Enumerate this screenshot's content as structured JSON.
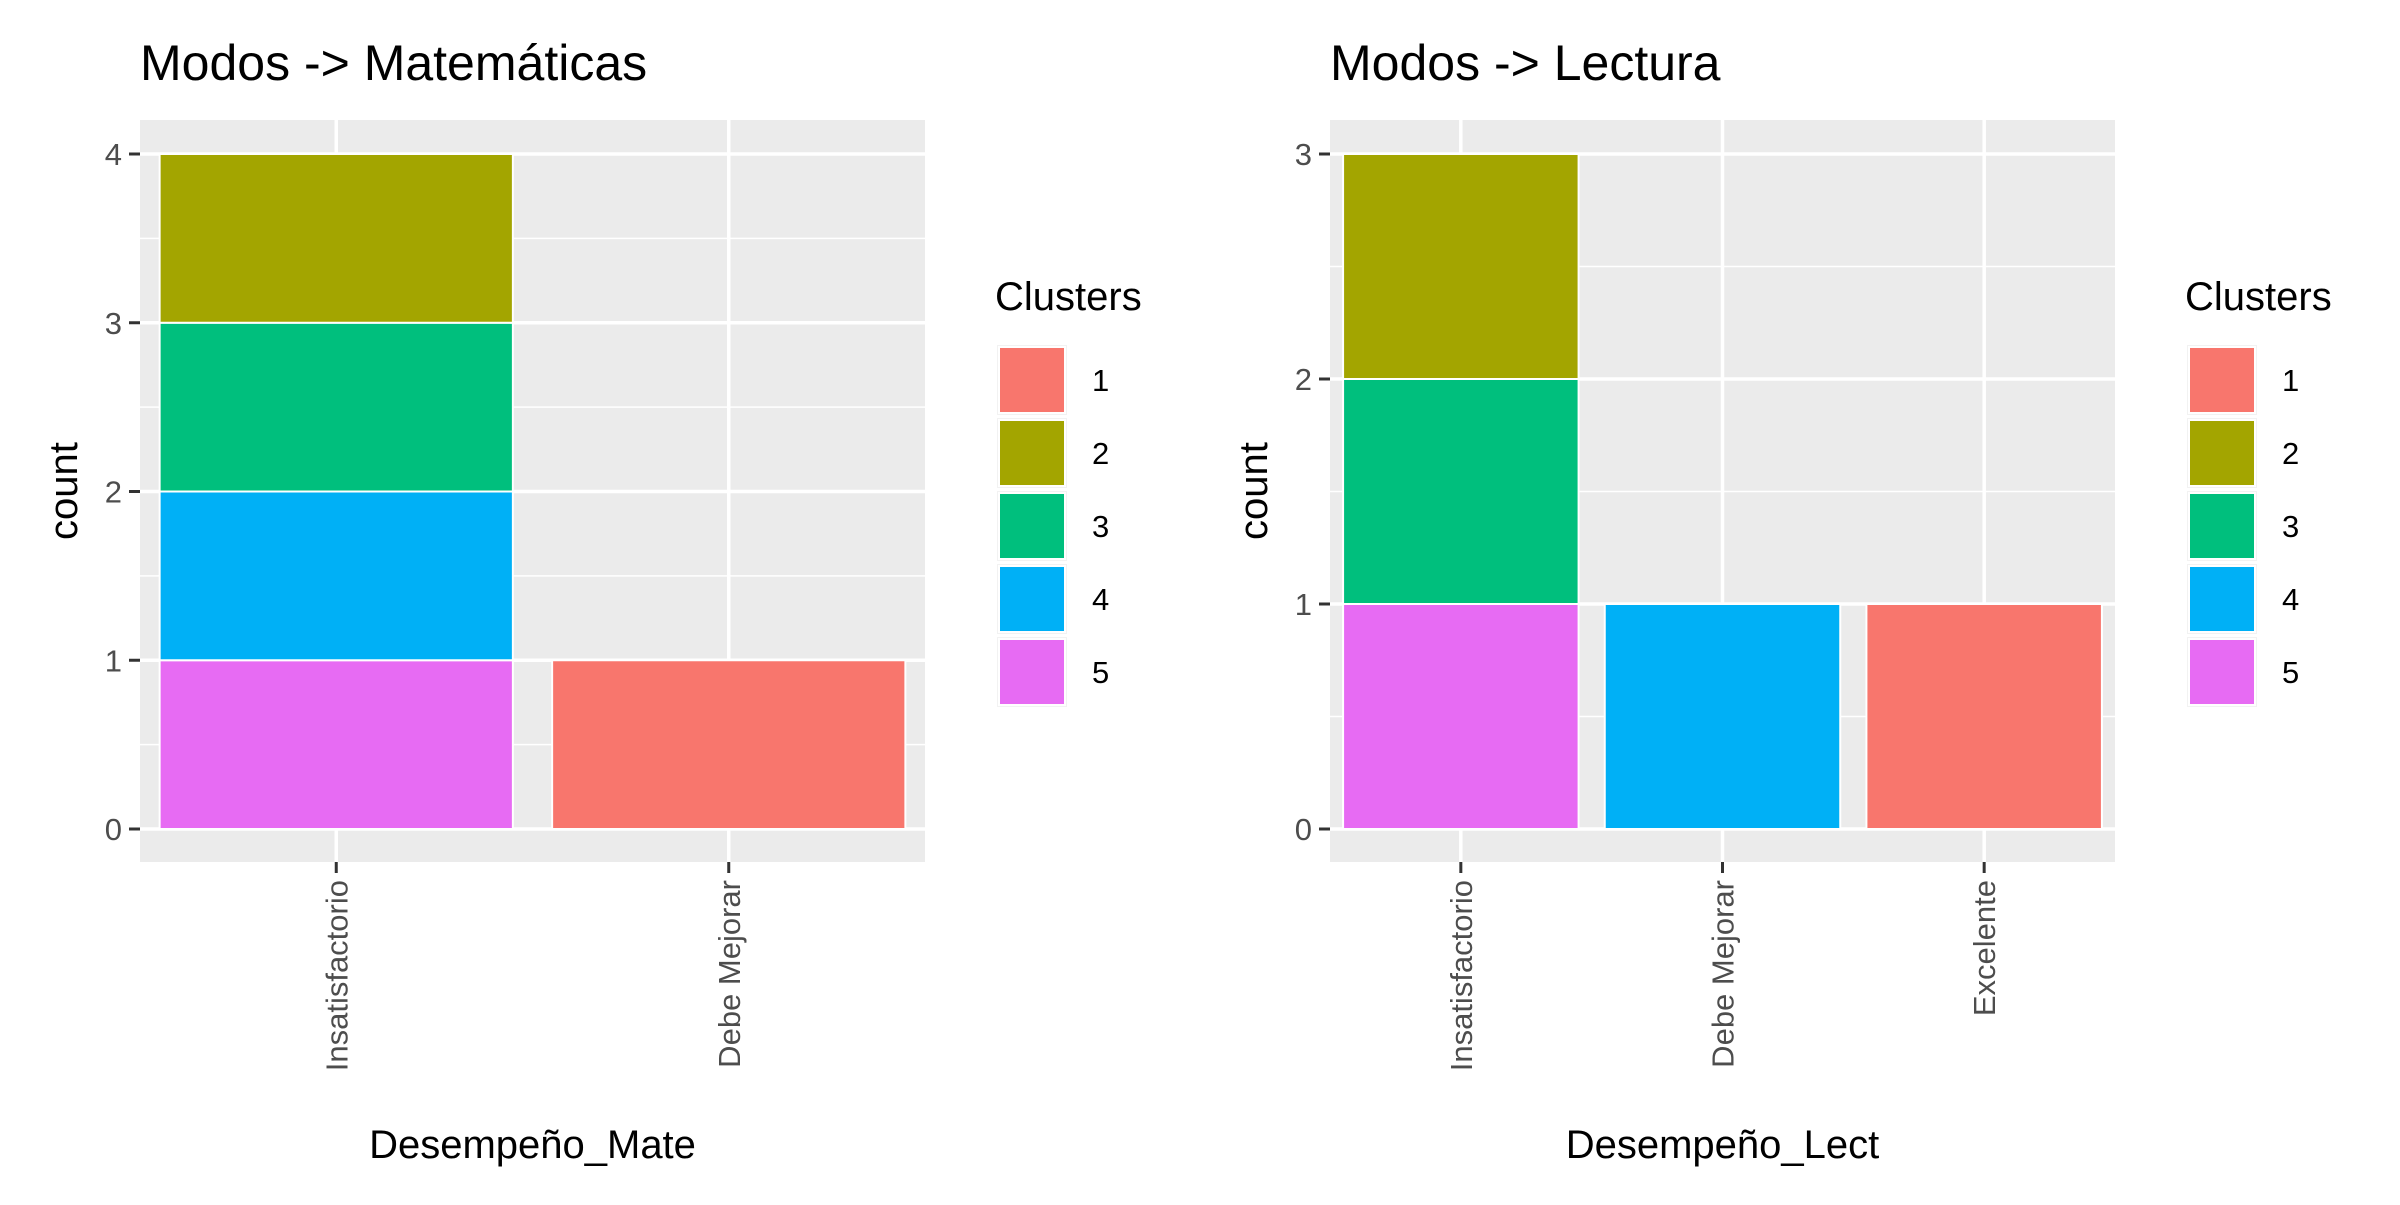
{
  "chart_data": [
    {
      "type": "bar",
      "stacked": true,
      "title": "Modos -> Matemáticas",
      "xlabel": "Desempeño_Mate",
      "ylabel": "count",
      "categories": [
        "Insatisfactorio",
        "Debe Mejorar"
      ],
      "ylim": [
        0,
        4
      ],
      "yticks": [
        0,
        1,
        2,
        3,
        4
      ],
      "grid": true,
      "legend": {
        "title": "Clusters",
        "position": "right"
      },
      "series": [
        {
          "name": "1",
          "color": "#F8766D",
          "values": [
            0,
            1
          ]
        },
        {
          "name": "2",
          "color": "#A3A500",
          "values": [
            1,
            0
          ]
        },
        {
          "name": "3",
          "color": "#00BF7D",
          "values": [
            1,
            0
          ]
        },
        {
          "name": "4",
          "color": "#00B0F6",
          "values": [
            1,
            0
          ]
        },
        {
          "name": "5",
          "color": "#E76BF3",
          "values": [
            1,
            0
          ]
        }
      ]
    },
    {
      "type": "bar",
      "stacked": true,
      "title": "Modos -> Lectura",
      "xlabel": "Desempeño_Lect",
      "ylabel": "count",
      "categories": [
        "Insatisfactorio",
        "Debe Mejorar",
        "Excelente"
      ],
      "ylim": [
        0,
        3
      ],
      "yticks": [
        0,
        1,
        2,
        3
      ],
      "grid": true,
      "legend": {
        "title": "Clusters",
        "position": "right"
      },
      "series": [
        {
          "name": "1",
          "color": "#F8766D",
          "values": [
            0,
            0,
            1
          ]
        },
        {
          "name": "2",
          "color": "#A3A500",
          "values": [
            1,
            0,
            0
          ]
        },
        {
          "name": "3",
          "color": "#00BF7D",
          "values": [
            1,
            0,
            0
          ]
        },
        {
          "name": "4",
          "color": "#00B0F6",
          "values": [
            0,
            1,
            0
          ]
        },
        {
          "name": "5",
          "color": "#E76BF3",
          "values": [
            1,
            0,
            0
          ]
        }
      ]
    }
  ]
}
